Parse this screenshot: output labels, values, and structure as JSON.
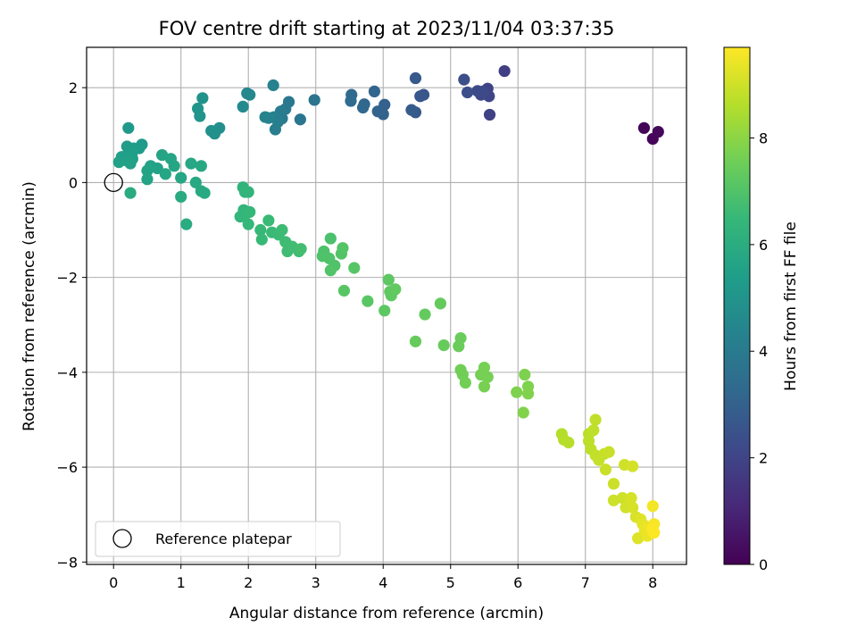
{
  "chart_data": {
    "type": "scatter",
    "title": "FOV centre drift starting at 2023/11/04 03:37:35",
    "xlabel": "Angular distance from reference (arcmin)",
    "ylabel": "Rotation from reference (arcmin)",
    "xlim": [
      -0.4,
      8.5
    ],
    "ylim": [
      -8.05,
      2.85
    ],
    "x_ticks": [
      0,
      1,
      2,
      3,
      4,
      5,
      6,
      7,
      8
    ],
    "y_ticks": [
      -8,
      -6,
      -4,
      -2,
      0,
      2
    ],
    "x_tick_labels": [
      "0",
      "1",
      "2",
      "3",
      "4",
      "5",
      "6",
      "7",
      "8"
    ],
    "y_tick_labels": [
      "−8",
      "−6",
      "−4",
      "−2",
      "0",
      "2"
    ],
    "grid": true,
    "legend": {
      "position": "bottom-left",
      "entries": [
        "Reference platepar"
      ]
    },
    "reference_point": {
      "x": 0,
      "y": 0,
      "marker": "open-circle"
    },
    "colorbar": {
      "label": "Hours from first FF file",
      "colormap": "viridis",
      "range": [
        0,
        9.7
      ],
      "ticks": [
        0,
        2,
        4,
        6,
        8
      ],
      "tick_labels": [
        "0",
        "2",
        "4",
        "6",
        "8"
      ]
    },
    "colors": {
      "viridis": [
        "#440154",
        "#482878",
        "#3e4989",
        "#31688e",
        "#26828e",
        "#1f9e89",
        "#35b779",
        "#6ece58",
        "#b5de2b",
        "#fde725"
      ],
      "grid": "#b0b0b0"
    },
    "points": [
      {
        "x": 7.87,
        "y": 1.15,
        "t": 0.1
      },
      {
        "x": 8.0,
        "y": 0.92,
        "t": 0.15
      },
      {
        "x": 8.08,
        "y": 1.07,
        "t": 0.2
      },
      {
        "x": 5.8,
        "y": 2.35,
        "t": 1.8
      },
      {
        "x": 5.58,
        "y": 1.43,
        "t": 1.9
      },
      {
        "x": 5.55,
        "y": 1.98,
        "t": 2.0
      },
      {
        "x": 5.57,
        "y": 1.82,
        "t": 2.05
      },
      {
        "x": 5.45,
        "y": 1.85,
        "t": 2.1
      },
      {
        "x": 5.48,
        "y": 1.92,
        "t": 2.15
      },
      {
        "x": 5.4,
        "y": 1.93,
        "t": 2.2
      },
      {
        "x": 5.25,
        "y": 1.9,
        "t": 2.3
      },
      {
        "x": 5.2,
        "y": 2.17,
        "t": 2.35
      },
      {
        "x": 4.6,
        "y": 1.85,
        "t": 2.6
      },
      {
        "x": 4.55,
        "y": 1.82,
        "t": 2.65
      },
      {
        "x": 4.48,
        "y": 2.2,
        "t": 2.7
      },
      {
        "x": 4.48,
        "y": 1.48,
        "t": 2.75
      },
      {
        "x": 4.42,
        "y": 1.53,
        "t": 2.8
      },
      {
        "x": 4.02,
        "y": 1.64,
        "t": 3.0
      },
      {
        "x": 4.0,
        "y": 1.44,
        "t": 3.05
      },
      {
        "x": 3.92,
        "y": 1.5,
        "t": 3.1
      },
      {
        "x": 3.87,
        "y": 1.92,
        "t": 3.15
      },
      {
        "x": 3.72,
        "y": 1.65,
        "t": 3.2
      },
      {
        "x": 3.7,
        "y": 1.58,
        "t": 3.25
      },
      {
        "x": 3.53,
        "y": 1.85,
        "t": 3.35
      },
      {
        "x": 3.52,
        "y": 1.72,
        "t": 3.4
      },
      {
        "x": 2.98,
        "y": 1.74,
        "t": 3.7
      },
      {
        "x": 2.77,
        "y": 1.33,
        "t": 3.8
      },
      {
        "x": 2.6,
        "y": 1.7,
        "t": 3.9
      },
      {
        "x": 2.55,
        "y": 1.55,
        "t": 3.95
      },
      {
        "x": 2.5,
        "y": 1.35,
        "t": 4.0
      },
      {
        "x": 2.48,
        "y": 1.5,
        "t": 4.05
      },
      {
        "x": 2.44,
        "y": 1.28,
        "t": 4.1
      },
      {
        "x": 2.4,
        "y": 1.12,
        "t": 4.15
      },
      {
        "x": 2.38,
        "y": 1.38,
        "t": 4.2
      },
      {
        "x": 2.37,
        "y": 2.05,
        "t": 4.25
      },
      {
        "x": 2.3,
        "y": 1.36,
        "t": 4.3
      },
      {
        "x": 2.25,
        "y": 1.38,
        "t": 4.35
      },
      {
        "x": 2.02,
        "y": 1.85,
        "t": 4.5
      },
      {
        "x": 1.98,
        "y": 1.88,
        "t": 4.55
      },
      {
        "x": 1.92,
        "y": 1.6,
        "t": 4.6
      },
      {
        "x": 1.57,
        "y": 1.15,
        "t": 4.8
      },
      {
        "x": 1.5,
        "y": 1.03,
        "t": 4.85
      },
      {
        "x": 1.45,
        "y": 1.09,
        "t": 4.9
      },
      {
        "x": 1.32,
        "y": 1.78,
        "t": 4.95
      },
      {
        "x": 1.28,
        "y": 1.4,
        "t": 5.0
      },
      {
        "x": 1.25,
        "y": 1.56,
        "t": 5.05
      },
      {
        "x": 0.22,
        "y": 1.15,
        "t": 5.2
      },
      {
        "x": 0.42,
        "y": 0.8,
        "t": 5.25
      },
      {
        "x": 0.2,
        "y": 0.76,
        "t": 5.3
      },
      {
        "x": 0.38,
        "y": 0.72,
        "t": 5.32
      },
      {
        "x": 0.3,
        "y": 0.72,
        "t": 5.35
      },
      {
        "x": 0.27,
        "y": 0.6,
        "t": 5.37
      },
      {
        "x": 0.2,
        "y": 0.58,
        "t": 5.4
      },
      {
        "x": 0.12,
        "y": 0.54,
        "t": 5.42
      },
      {
        "x": 0.28,
        "y": 0.5,
        "t": 5.45
      },
      {
        "x": 0.18,
        "y": 0.47,
        "t": 5.47
      },
      {
        "x": 0.08,
        "y": 0.43,
        "t": 5.5
      },
      {
        "x": 0.25,
        "y": 0.4,
        "t": 5.52
      },
      {
        "x": 0.65,
        "y": 0.3,
        "t": 5.55
      },
      {
        "x": 0.55,
        "y": 0.35,
        "t": 5.57
      },
      {
        "x": 0.5,
        "y": 0.25,
        "t": 5.6
      },
      {
        "x": 0.5,
        "y": 0.07,
        "t": 5.62
      },
      {
        "x": 0.72,
        "y": 0.58,
        "t": 5.65
      },
      {
        "x": 0.85,
        "y": 0.5,
        "t": 5.67
      },
      {
        "x": 0.9,
        "y": 0.35,
        "t": 5.7
      },
      {
        "x": 0.77,
        "y": 0.18,
        "t": 5.72
      },
      {
        "x": 1.0,
        "y": 0.1,
        "t": 5.75
      },
      {
        "x": 1.15,
        "y": 0.4,
        "t": 5.77
      },
      {
        "x": 1.3,
        "y": 0.35,
        "t": 5.8
      },
      {
        "x": 1.22,
        "y": 0.0,
        "t": 5.82
      },
      {
        "x": 1.3,
        "y": -0.18,
        "t": 5.85
      },
      {
        "x": 1.35,
        "y": -0.22,
        "t": 5.87
      },
      {
        "x": 1.0,
        "y": -0.3,
        "t": 5.9
      },
      {
        "x": 0.25,
        "y": -0.22,
        "t": 5.92
      },
      {
        "x": 1.08,
        "y": -0.88,
        "t": 5.95
      },
      {
        "x": 1.92,
        "y": -0.1,
        "t": 6.3
      },
      {
        "x": 1.95,
        "y": -0.2,
        "t": 6.32
      },
      {
        "x": 2.0,
        "y": -0.2,
        "t": 6.35
      },
      {
        "x": 1.93,
        "y": -0.58,
        "t": 6.37
      },
      {
        "x": 1.95,
        "y": -0.68,
        "t": 6.4
      },
      {
        "x": 1.88,
        "y": -0.72,
        "t": 6.42
      },
      {
        "x": 2.0,
        "y": -0.88,
        "t": 6.45
      },
      {
        "x": 2.02,
        "y": -0.62,
        "t": 6.47
      },
      {
        "x": 2.18,
        "y": -1.0,
        "t": 6.5
      },
      {
        "x": 2.2,
        "y": -1.2,
        "t": 6.52
      },
      {
        "x": 2.3,
        "y": -0.8,
        "t": 6.55
      },
      {
        "x": 2.35,
        "y": -1.05,
        "t": 6.57
      },
      {
        "x": 2.45,
        "y": -1.1,
        "t": 6.6
      },
      {
        "x": 2.5,
        "y": -1.0,
        "t": 6.62
      },
      {
        "x": 2.55,
        "y": -1.25,
        "t": 6.65
      },
      {
        "x": 2.58,
        "y": -1.45,
        "t": 6.67
      },
      {
        "x": 2.65,
        "y": -1.35,
        "t": 6.7
      },
      {
        "x": 2.75,
        "y": -1.45,
        "t": 6.72
      },
      {
        "x": 2.78,
        "y": -1.4,
        "t": 6.75
      },
      {
        "x": 3.22,
        "y": -1.18,
        "t": 6.9
      },
      {
        "x": 3.12,
        "y": -1.45,
        "t": 6.92
      },
      {
        "x": 3.1,
        "y": -1.55,
        "t": 6.95
      },
      {
        "x": 3.2,
        "y": -1.6,
        "t": 6.97
      },
      {
        "x": 3.28,
        "y": -1.75,
        "t": 7.0
      },
      {
        "x": 3.22,
        "y": -1.85,
        "t": 7.02
      },
      {
        "x": 3.38,
        "y": -1.5,
        "t": 7.05
      },
      {
        "x": 3.4,
        "y": -1.38,
        "t": 7.07
      },
      {
        "x": 3.57,
        "y": -1.8,
        "t": 7.1
      },
      {
        "x": 3.42,
        "y": -2.28,
        "t": 7.12
      },
      {
        "x": 3.77,
        "y": -2.5,
        "t": 7.15
      },
      {
        "x": 4.02,
        "y": -2.7,
        "t": 7.2
      },
      {
        "x": 4.08,
        "y": -2.05,
        "t": 7.22
      },
      {
        "x": 4.1,
        "y": -2.3,
        "t": 7.25
      },
      {
        "x": 4.12,
        "y": -2.38,
        "t": 7.27
      },
      {
        "x": 4.18,
        "y": -2.25,
        "t": 7.3
      },
      {
        "x": 4.62,
        "y": -2.78,
        "t": 7.35
      },
      {
        "x": 4.85,
        "y": -2.55,
        "t": 7.38
      },
      {
        "x": 4.48,
        "y": -3.35,
        "t": 7.4
      },
      {
        "x": 4.9,
        "y": -3.43,
        "t": 7.42
      },
      {
        "x": 5.15,
        "y": -3.28,
        "t": 7.45
      },
      {
        "x": 5.12,
        "y": -3.45,
        "t": 7.47
      },
      {
        "x": 5.15,
        "y": -3.95,
        "t": 7.55
      },
      {
        "x": 5.18,
        "y": -4.05,
        "t": 7.57
      },
      {
        "x": 5.22,
        "y": -4.22,
        "t": 7.6
      },
      {
        "x": 5.45,
        "y": -4.05,
        "t": 7.62
      },
      {
        "x": 5.5,
        "y": -3.9,
        "t": 7.65
      },
      {
        "x": 5.55,
        "y": -4.1,
        "t": 7.67
      },
      {
        "x": 5.5,
        "y": -4.3,
        "t": 7.7
      },
      {
        "x": 5.98,
        "y": -4.42,
        "t": 7.75
      },
      {
        "x": 6.1,
        "y": -4.05,
        "t": 7.78
      },
      {
        "x": 6.15,
        "y": -4.3,
        "t": 7.8
      },
      {
        "x": 6.15,
        "y": -4.45,
        "t": 7.82
      },
      {
        "x": 6.08,
        "y": -4.85,
        "t": 7.85
      },
      {
        "x": 6.65,
        "y": -5.3,
        "t": 8.6
      },
      {
        "x": 6.68,
        "y": -5.42,
        "t": 8.62
      },
      {
        "x": 6.75,
        "y": -5.48,
        "t": 8.65
      },
      {
        "x": 7.05,
        "y": -5.3,
        "t": 8.7
      },
      {
        "x": 7.05,
        "y": -5.45,
        "t": 8.72
      },
      {
        "x": 7.08,
        "y": -5.62,
        "t": 8.75
      },
      {
        "x": 7.12,
        "y": -5.22,
        "t": 8.77
      },
      {
        "x": 7.15,
        "y": -5.0,
        "t": 8.8
      },
      {
        "x": 7.15,
        "y": -5.75,
        "t": 8.82
      },
      {
        "x": 7.2,
        "y": -5.85,
        "t": 8.85
      },
      {
        "x": 7.28,
        "y": -5.72,
        "t": 8.87
      },
      {
        "x": 7.35,
        "y": -5.68,
        "t": 8.9
      },
      {
        "x": 7.3,
        "y": -6.05,
        "t": 8.92
      },
      {
        "x": 7.42,
        "y": -6.35,
        "t": 8.95
      },
      {
        "x": 7.42,
        "y": -6.7,
        "t": 8.97
      },
      {
        "x": 7.55,
        "y": -6.65,
        "t": 9.0
      },
      {
        "x": 7.58,
        "y": -5.95,
        "t": 9.02
      },
      {
        "x": 7.6,
        "y": -6.85,
        "t": 9.05
      },
      {
        "x": 7.7,
        "y": -5.98,
        "t": 9.07
      },
      {
        "x": 7.68,
        "y": -6.65,
        "t": 9.1
      },
      {
        "x": 7.7,
        "y": -6.85,
        "t": 9.12
      },
      {
        "x": 7.75,
        "y": -7.05,
        "t": 9.15
      },
      {
        "x": 7.78,
        "y": -7.5,
        "t": 9.2
      },
      {
        "x": 7.82,
        "y": -7.1,
        "t": 9.25
      },
      {
        "x": 7.85,
        "y": -7.2,
        "t": 9.3
      },
      {
        "x": 7.88,
        "y": -7.35,
        "t": 9.35
      },
      {
        "x": 7.9,
        "y": -7.25,
        "t": 9.4
      },
      {
        "x": 7.92,
        "y": -7.45,
        "t": 9.45
      },
      {
        "x": 7.98,
        "y": -7.3,
        "t": 9.5
      },
      {
        "x": 8.0,
        "y": -6.82,
        "t": 9.55
      },
      {
        "x": 8.02,
        "y": -7.2,
        "t": 9.6
      },
      {
        "x": 8.0,
        "y": -7.3,
        "t": 9.65
      },
      {
        "x": 8.02,
        "y": -7.38,
        "t": 9.7
      }
    ]
  }
}
